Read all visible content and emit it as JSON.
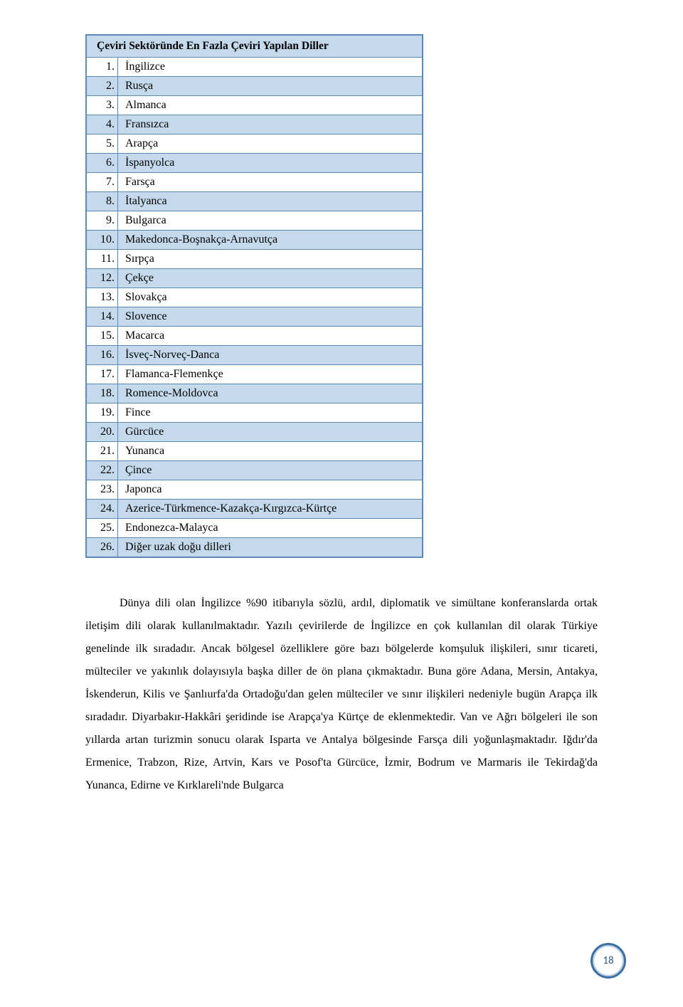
{
  "table": {
    "title": "Çeviri Sektöründe En Fazla Çeviri Yapılan Diller",
    "header_bg": "#c4d9eb",
    "border_color": "#5b8bb5",
    "rows": [
      {
        "n": "1.",
        "lang": "İngilizce"
      },
      {
        "n": "2.",
        "lang": "Rusça"
      },
      {
        "n": "3.",
        "lang": "Almanca"
      },
      {
        "n": "4.",
        "lang": "Fransızca"
      },
      {
        "n": "5.",
        "lang": "Arapça"
      },
      {
        "n": "6.",
        "lang": "İspanyolca"
      },
      {
        "n": "7.",
        "lang": "Farsça"
      },
      {
        "n": "8.",
        "lang": "İtalyanca"
      },
      {
        "n": "9.",
        "lang": "Bulgarca"
      },
      {
        "n": "10.",
        "lang": "Makedonca-Boşnakça-Arnavutça"
      },
      {
        "n": "11.",
        "lang": "Sırpça"
      },
      {
        "n": "12.",
        "lang": "Çekçe"
      },
      {
        "n": "13.",
        "lang": "Slovakça"
      },
      {
        "n": "14.",
        "lang": "Slovence"
      },
      {
        "n": "15.",
        "lang": "Macarca"
      },
      {
        "n": "16.",
        "lang": "İsveç-Norveç-Danca"
      },
      {
        "n": "17.",
        "lang": "Flamanca-Flemenkçe"
      },
      {
        "n": "18.",
        "lang": "Romence-Moldovca"
      },
      {
        "n": "19.",
        "lang": "Fince"
      },
      {
        "n": "20.",
        "lang": "Gürcüce"
      },
      {
        "n": "21.",
        "lang": "Yunanca"
      },
      {
        "n": "22.",
        "lang": "Çince"
      },
      {
        "n": "23.",
        "lang": "Japonca"
      },
      {
        "n": "24.",
        "lang": "Azerice-Türkmence-Kazakça-Kırgızca-Kürtçe"
      },
      {
        "n": "25.",
        "lang": "Endonezca-Malayca"
      },
      {
        "n": "26.",
        "lang": "Diğer uzak doğu dilleri"
      }
    ]
  },
  "paragraph": "Dünya dili olan İngilizce %90 itibarıyla sözlü, ardıl, diplomatik ve simültane konferanslarda ortak iletişim dili olarak kullanılmaktadır. Yazılı çevirilerde de İngilizce en çok kullanılan dil olarak Türkiye genelinde ilk sıradadır. Ancak bölgesel özelliklere göre bazı bölgelerde komşuluk ilişkileri, sınır ticareti, mülteciler ve yakınlık dolayısıyla başka diller de ön plana çıkmaktadır. Buna göre Adana, Mersin, Antakya, İskenderun, Kilis ve Şanlıurfa'da Ortadoğu'dan gelen mülteciler ve sınır ilişkileri nedeniyle bugün Arapça ilk sıradadır. Diyarbakır-Hakkâri şeridinde ise Arapça'ya Kürtçe de eklenmektedir. Van ve Ağrı bölgeleri ile son yıllarda artan turizmin sonucu olarak Isparta ve Antalya bölgesinde Farsça dili yoğunlaşmaktadır. Iğdır'da Ermenice, Trabzon, Rize, Artvin, Kars ve Posof'ta Gürcüce, İzmir, Bodrum ve Marmaris ile Tekirdağ'da Yunanca, Edirne ve Kırklareli'nde Bulgarca",
  "page_number": "18",
  "colors": {
    "badge_border": "#3d6fa1",
    "badge_text": "#2a5a8a"
  }
}
